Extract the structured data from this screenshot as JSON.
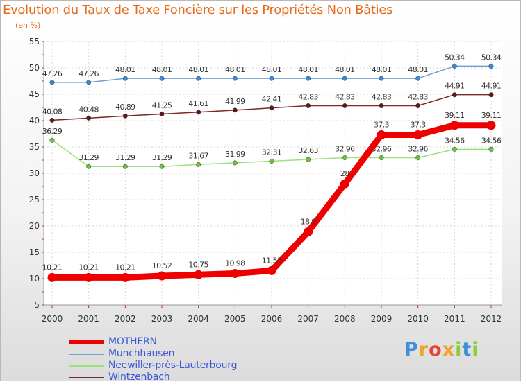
{
  "title": "Evolution du Taux de Taxe Foncière sur les Propriétés Non Bâties",
  "unit_label": "(en %)",
  "brand": {
    "name": "Proxiti",
    "letters": [
      "P",
      "r",
      "o",
      "x",
      "i",
      "t",
      "i"
    ],
    "letter_colors": [
      "#3f8fd8",
      "#f0a32a",
      "#e8402a",
      "#f0a32a",
      "#8ccd3c",
      "#3f8fd8",
      "#8ccd3c"
    ]
  },
  "chart_data": {
    "type": "line",
    "title": "Evolution du Taux de Taxe Foncière sur les Propriétés Non Bâties",
    "xlabel": "",
    "ylabel": "(en %)",
    "x": [
      2000,
      2001,
      2002,
      2003,
      2004,
      2005,
      2006,
      2007,
      2008,
      2009,
      2010,
      2011,
      2012
    ],
    "x_tick_labels": [
      "2000",
      "2001",
      "2002",
      "2003",
      "2004",
      "2005",
      "2006",
      "2007",
      "2008",
      "2009",
      "2010",
      "2011",
      "2012"
    ],
    "ylim": [
      5,
      55
    ],
    "y_ticks": [
      5,
      10,
      15,
      20,
      25,
      30,
      35,
      40,
      45,
      50,
      55
    ],
    "y_tick_labels": [
      "5",
      "10",
      "15",
      "20",
      "25",
      "30",
      "35",
      "40",
      "45",
      "50",
      "55"
    ],
    "grid": true,
    "legend_position": "bottom-left",
    "series": [
      {
        "name": "Munchhausen",
        "color": "#6ea0d4",
        "marker_color": "#3a8ad6",
        "emphasis": false,
        "values": [
          47.26,
          47.26,
          48.01,
          48.01,
          48.01,
          48.01,
          48.01,
          48.01,
          48.01,
          48.01,
          48.01,
          50.34,
          50.34
        ],
        "labels": [
          "47.26",
          "47.26",
          "48.01",
          "48.01",
          "48.01",
          "48.01",
          "48.01",
          "48.01",
          "48.01",
          "48.01",
          "48.01",
          "50.34",
          "50.34"
        ]
      },
      {
        "name": "Wintzenbach",
        "color": "#7a2828",
        "marker_color": "#5c1a1a",
        "emphasis": false,
        "values": [
          40.08,
          40.48,
          40.89,
          41.25,
          41.61,
          41.99,
          42.41,
          42.83,
          42.83,
          42.83,
          42.83,
          44.91,
          44.91
        ],
        "labels": [
          "40.08",
          "40.48",
          "40.89",
          "41.25",
          "41.61",
          "41.99",
          "42.41",
          "42.83",
          "42.83",
          "42.83",
          "42.83",
          "44.91",
          "44.91"
        ]
      },
      {
        "name": "Neewiller-près-Lauterbourg",
        "color": "#9ce27a",
        "marker_color": "#6cc43c",
        "emphasis": false,
        "values": [
          36.29,
          31.29,
          31.29,
          31.29,
          31.67,
          31.99,
          32.31,
          32.63,
          32.96,
          32.96,
          32.96,
          34.56,
          34.56
        ],
        "labels": [
          "36.29",
          "31.29",
          "31.29",
          "31.29",
          "31.67",
          "31.99",
          "32.31",
          "32.63",
          "32.96",
          "32.96",
          "32.96",
          "34.56",
          "34.56"
        ]
      },
      {
        "name": "MOTHERN",
        "color": "#ee0000",
        "marker_color": "#ee0000",
        "emphasis": true,
        "values": [
          10.21,
          10.21,
          10.21,
          10.52,
          10.75,
          10.98,
          11.53,
          18.9,
          28,
          37.3,
          37.3,
          39.11,
          39.11
        ],
        "labels": [
          "10.21",
          "10.21",
          "10.21",
          "10.52",
          "10.75",
          "10.98",
          "11.53",
          "18.9",
          "28",
          "37.3",
          "37.3",
          "39.11",
          "39.11"
        ]
      }
    ]
  },
  "legend": [
    {
      "label": "MOTHERN",
      "color": "#ee0000",
      "thick": true
    },
    {
      "label": "Munchhausen",
      "color": "#6ea0d4",
      "thick": false
    },
    {
      "label": "Neewiller-près-Lauterbourg",
      "color": "#9ce27a",
      "thick": false
    },
    {
      "label": "Wintzenbach",
      "color": "#7a2828",
      "thick": false
    }
  ]
}
